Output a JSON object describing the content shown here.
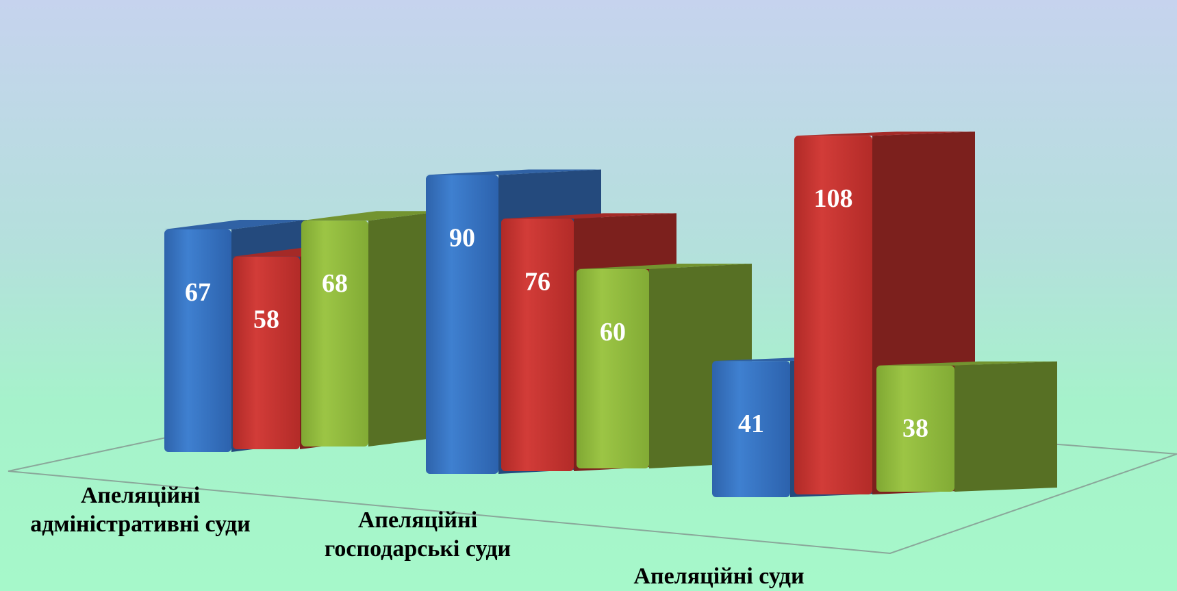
{
  "chart_data": {
    "type": "bar",
    "categories": [
      [
        "Апеляційні",
        "адміністративні суди"
      ],
      [
        "Апеляційні",
        "господарські суди"
      ],
      [
        "Апеляційні суди"
      ]
    ],
    "series": [
      {
        "values": [
          67,
          90,
          41
        ],
        "color": "#3a78c9"
      },
      {
        "values": [
          58,
          76,
          108
        ],
        "color": "#c8332f"
      },
      {
        "values": [
          68,
          60,
          38
        ],
        "color": "#8cb43a"
      }
    ],
    "data_labels": true,
    "grid": false,
    "legend": "none",
    "three_d": true
  }
}
